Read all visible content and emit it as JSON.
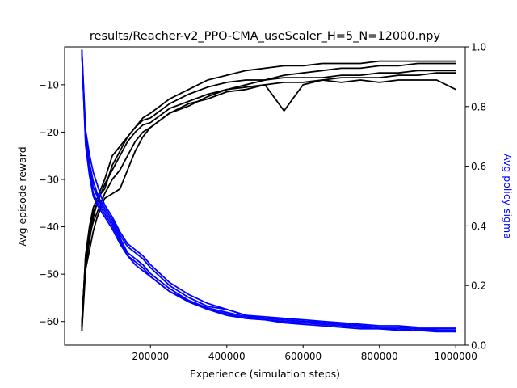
{
  "chart_data": {
    "type": "line",
    "title": "results/Reacher-v2_PPO-CMA_useScaler_H=5_N=12000.npy",
    "xlabel": "Experience (simulation steps)",
    "ylabel": "Avg episode reward",
    "y2label": "Avg policy sigma",
    "xlim": [
      -25000,
      1025000
    ],
    "ylim": [
      -65,
      -2
    ],
    "y2lim": [
      0,
      1
    ],
    "xticks": [
      200000,
      400000,
      600000,
      800000,
      1000000
    ],
    "yticks": [
      -60,
      -50,
      -40,
      -30,
      -20,
      -10
    ],
    "y2ticks": [
      0.0,
      0.2,
      0.4,
      0.6,
      0.8,
      1.0
    ],
    "xtick_labels": [
      "200000",
      "400000",
      "600000",
      "800000",
      "1000000"
    ],
    "ytick_labels": [
      "−60",
      "−50",
      "−40",
      "−30",
      "−20",
      "−10"
    ],
    "y2tick_labels": [
      "0.0",
      "0.2",
      "0.4",
      "0.6",
      "0.8",
      "1.0"
    ],
    "grid": false,
    "legend": "none",
    "colors": {
      "reward": "#000000",
      "sigma": "#0000ff"
    },
    "x": [
      20000,
      30000,
      40000,
      50000,
      60000,
      70000,
      80000,
      100000,
      120000,
      140000,
      160000,
      180000,
      200000,
      250000,
      300000,
      350000,
      400000,
      450000,
      500000,
      550000,
      600000,
      650000,
      700000,
      750000,
      800000,
      850000,
      900000,
      950000,
      1000000
    ],
    "reward_series": [
      {
        "values": [
          -62,
          -48,
          -43,
          -38,
          -35,
          -33,
          -31,
          -28,
          -25,
          -22,
          -20,
          -18.5,
          -18,
          -15,
          -13.5,
          -12,
          -11,
          -10.5,
          -10,
          -9.5,
          -9.5,
          -9,
          -8.5,
          -8.5,
          -8.5,
          -8,
          -8,
          -7.5,
          -7.5
        ]
      },
      {
        "values": [
          -61,
          -46,
          -40,
          -36,
          -34,
          -32,
          -30,
          -25,
          -23,
          -21,
          -19,
          -17.5,
          -17,
          -14,
          -12,
          -10.5,
          -9.5,
          -9,
          -9,
          -8.5,
          -8.5,
          -8.5,
          -8,
          -8,
          -7.5,
          -7.5,
          -7,
          -7,
          -7
        ]
      },
      {
        "values": [
          -60,
          -47,
          -42,
          -39,
          -37,
          -35,
          -33,
          -30,
          -28,
          -25,
          -22,
          -20,
          -19,
          -16,
          -14.5,
          -12.5,
          -11,
          -10,
          -9,
          -8,
          -7.5,
          -7,
          -6.5,
          -6.5,
          -6,
          -6,
          -5.5,
          -5.5,
          -5.5
        ]
      },
      {
        "values": [
          -62,
          -49,
          -45,
          -41,
          -38,
          -36,
          -34,
          -33,
          -32,
          -28,
          -24,
          -21,
          -19,
          -16,
          -14,
          -13,
          -11.5,
          -11,
          -10,
          -15.5,
          -10,
          -9,
          -9.5,
          -9,
          -9.5,
          -9,
          -9,
          -9,
          -11
        ]
      },
      {
        "values": [
          -61,
          -46,
          -41,
          -37,
          -35,
          -33,
          -32,
          -27,
          -24,
          -21,
          -19,
          -17,
          -16,
          -13,
          -11,
          -9,
          -8,
          -7,
          -6.5,
          -6,
          -6,
          -5.5,
          -5.5,
          -5.5,
          -5,
          -5,
          -5,
          -5,
          -5
        ]
      }
    ],
    "sigma_series": [
      {
        "values": [
          0.99,
          0.7,
          0.61,
          0.55,
          0.51,
          0.48,
          0.46,
          0.42,
          0.37,
          0.33,
          0.31,
          0.29,
          0.26,
          0.2,
          0.16,
          0.13,
          0.12,
          0.1,
          0.09,
          0.085,
          0.08,
          0.075,
          0.07,
          0.065,
          0.06,
          0.06,
          0.055,
          0.055,
          0.055
        ]
      },
      {
        "values": [
          0.98,
          0.69,
          0.6,
          0.53,
          0.5,
          0.47,
          0.45,
          0.41,
          0.36,
          0.31,
          0.29,
          0.27,
          0.24,
          0.19,
          0.15,
          0.125,
          0.11,
          0.095,
          0.09,
          0.085,
          0.08,
          0.075,
          0.07,
          0.065,
          0.06,
          0.06,
          0.055,
          0.05,
          0.05
        ]
      },
      {
        "values": [
          0.99,
          0.68,
          0.58,
          0.51,
          0.48,
          0.46,
          0.44,
          0.4,
          0.35,
          0.3,
          0.28,
          0.26,
          0.23,
          0.18,
          0.15,
          0.12,
          0.105,
          0.09,
          0.085,
          0.08,
          0.075,
          0.07,
          0.065,
          0.06,
          0.055,
          0.055,
          0.05,
          0.05,
          0.045
        ]
      },
      {
        "values": [
          0.98,
          0.67,
          0.57,
          0.5,
          0.47,
          0.45,
          0.43,
          0.39,
          0.34,
          0.3,
          0.27,
          0.25,
          0.23,
          0.18,
          0.145,
          0.12,
          0.1,
          0.09,
          0.085,
          0.075,
          0.07,
          0.065,
          0.06,
          0.055,
          0.055,
          0.05,
          0.05,
          0.045,
          0.045
        ]
      },
      {
        "values": [
          0.99,
          0.72,
          0.64,
          0.58,
          0.54,
          0.5,
          0.47,
          0.43,
          0.38,
          0.34,
          0.32,
          0.3,
          0.27,
          0.21,
          0.17,
          0.14,
          0.12,
          0.1,
          0.095,
          0.09,
          0.085,
          0.08,
          0.075,
          0.07,
          0.065,
          0.065,
          0.06,
          0.06,
          0.06
        ]
      }
    ]
  }
}
